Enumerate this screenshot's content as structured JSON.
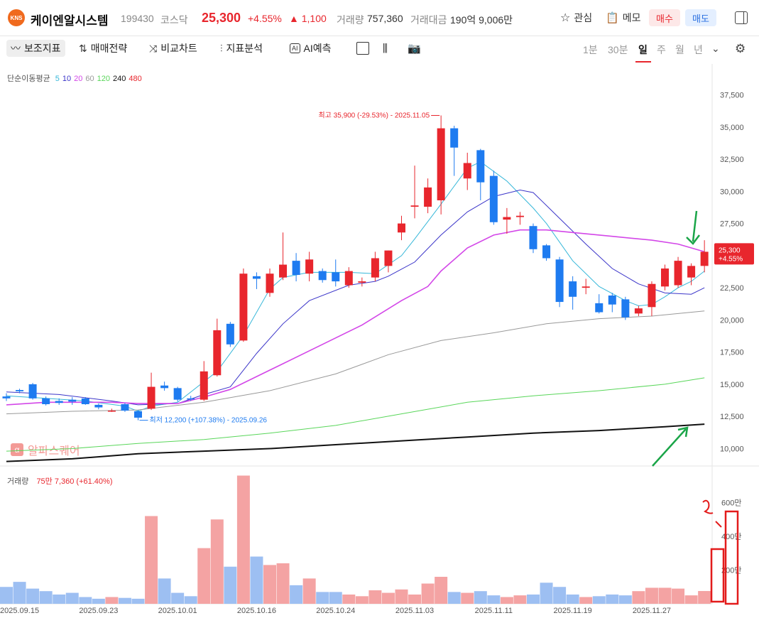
{
  "header": {
    "logo_text": "KNS",
    "name": "케이엔알시스템",
    "code": "199430",
    "market": "코스닥",
    "price": "25,300",
    "change_pct": "+4.55%",
    "change_abs": "▲ 1,100",
    "volume_label": "거래량",
    "volume": "757,360",
    "amount_label": "거래대금",
    "amount": "190억 9,006만",
    "watch_label": "관심",
    "memo_label": "메모",
    "buy_label": "매수",
    "sell_label": "매도"
  },
  "toolbar": {
    "tools": [
      {
        "label": "보조지표",
        "icon": "indicator-icon"
      },
      {
        "label": "매매전략",
        "icon": "strategy-icon"
      },
      {
        "label": "비교차트",
        "icon": "compare-icon"
      },
      {
        "label": "지표분석",
        "icon": "analysis-icon"
      },
      {
        "label": "AI예측",
        "icon": "ai-icon"
      }
    ],
    "periods": [
      "1분",
      "30분",
      "일",
      "주",
      "월",
      "년"
    ],
    "selected_period": "일"
  },
  "watermark": "알파스퀘어",
  "ma_legend": {
    "title": "단순이동평균",
    "items": [
      {
        "label": "5",
        "color": "#36b7d9"
      },
      {
        "label": "10",
        "color": "#3b35c9"
      },
      {
        "label": "20",
        "color": "#d347e8"
      },
      {
        "label": "60",
        "color": "#999999"
      },
      {
        "label": "120",
        "color": "#59d65a"
      },
      {
        "label": "240",
        "color": "#111111"
      },
      {
        "label": "480",
        "color": "#e8262d"
      }
    ]
  },
  "volume_legend": {
    "title": "거래량",
    "value": "75만 7,360 (+61.40%)"
  },
  "chart_data": {
    "type": "candlestick",
    "y_axis": {
      "range": [
        8700,
        38800
      ],
      "ticks": [
        10000,
        12500,
        15000,
        17500,
        20000,
        22500,
        25000,
        27500,
        30000,
        32500,
        35000,
        37500
      ],
      "tick_labels": [
        "10,000",
        "12,500",
        "15,000",
        "17,500",
        "20,000",
        "22,500",
        "25,000",
        "27,500",
        "30,000",
        "32,500",
        "35,000",
        "37,500"
      ]
    },
    "volume_axis": {
      "range": [
        0,
        8000000
      ],
      "ticks": [
        2000000,
        4000000,
        6000000
      ],
      "tick_labels": [
        "200만",
        "400만",
        "600만"
      ]
    },
    "x_labels": [
      {
        "index": 1,
        "label": "2025.09.15"
      },
      {
        "index": 7,
        "label": "2025.09.23"
      },
      {
        "index": 13,
        "label": "2025.10.01"
      },
      {
        "index": 19,
        "label": "2025.10.16"
      },
      {
        "index": 25,
        "label": "2025.10.24"
      },
      {
        "index": 31,
        "label": "2025.11.03"
      },
      {
        "index": 37,
        "label": "2025.11.11"
      },
      {
        "index": 43,
        "label": "2025.11.19"
      },
      {
        "index": 49,
        "label": "2025.11.27"
      }
    ],
    "candles": [
      {
        "o": 14050,
        "h": 14300,
        "l": 13700,
        "c": 13900,
        "v": 1000000
      },
      {
        "o": 14550,
        "h": 14650,
        "l": 14300,
        "c": 14450,
        "v": 1300000
      },
      {
        "o": 15000,
        "h": 15100,
        "l": 13800,
        "c": 13900,
        "v": 900000
      },
      {
        "o": 13900,
        "h": 14050,
        "l": 13350,
        "c": 13450,
        "v": 750000
      },
      {
        "o": 13700,
        "h": 13900,
        "l": 13400,
        "c": 13550,
        "v": 550000
      },
      {
        "o": 13800,
        "h": 14000,
        "l": 13400,
        "c": 13650,
        "v": 650000
      },
      {
        "o": 13900,
        "h": 14000,
        "l": 13400,
        "c": 13450,
        "v": 400000
      },
      {
        "o": 13400,
        "h": 13500,
        "l": 13050,
        "c": 13200,
        "v": 300000
      },
      {
        "o": 12950,
        "h": 13100,
        "l": 12850,
        "c": 12950,
        "v": 400000
      },
      {
        "o": 13450,
        "h": 13550,
        "l": 12850,
        "c": 12950,
        "v": 350000
      },
      {
        "o": 12900,
        "h": 13000,
        "l": 12200,
        "c": 12400,
        "v": 300000
      },
      {
        "o": 13100,
        "h": 15900,
        "l": 13000,
        "c": 14800,
        "v": 5200000
      },
      {
        "o": 14900,
        "h": 15200,
        "l": 14500,
        "c": 14700,
        "v": 1500000
      },
      {
        "o": 14700,
        "h": 14800,
        "l": 13650,
        "c": 13800,
        "v": 650000
      },
      {
        "o": 13900,
        "h": 14100,
        "l": 13700,
        "c": 13850,
        "v": 450000
      },
      {
        "o": 13800,
        "h": 16800,
        "l": 13700,
        "c": 16000,
        "v": 3300000
      },
      {
        "o": 15700,
        "h": 20100,
        "l": 15600,
        "c": 19200,
        "v": 5000000
      },
      {
        "o": 19700,
        "h": 19850,
        "l": 17900,
        "c": 18100,
        "v": 2200000
      },
      {
        "o": 18400,
        "h": 24000,
        "l": 18300,
        "c": 23600,
        "v": 7600000
      },
      {
        "o": 23400,
        "h": 23700,
        "l": 22400,
        "c": 23200,
        "v": 2800000
      },
      {
        "o": 22100,
        "h": 24000,
        "l": 21800,
        "c": 23600,
        "v": 2300000
      },
      {
        "o": 23300,
        "h": 26800,
        "l": 23100,
        "c": 24300,
        "v": 2400000
      },
      {
        "o": 24600,
        "h": 25200,
        "l": 23000,
        "c": 23500,
        "v": 1100000
      },
      {
        "o": 23600,
        "h": 25300,
        "l": 23000,
        "c": 24700,
        "v": 1500000
      },
      {
        "o": 23800,
        "h": 24000,
        "l": 22900,
        "c": 23100,
        "v": 700000
      },
      {
        "o": 23700,
        "h": 24700,
        "l": 22600,
        "c": 23000,
        "v": 700000
      },
      {
        "o": 22700,
        "h": 24100,
        "l": 22500,
        "c": 23800,
        "v": 550000
      },
      {
        "o": 22900,
        "h": 23300,
        "l": 22600,
        "c": 23000,
        "v": 450000
      },
      {
        "o": 23300,
        "h": 25300,
        "l": 23000,
        "c": 24800,
        "v": 800000
      },
      {
        "o": 24200,
        "h": 25400,
        "l": 23700,
        "c": 25400,
        "v": 650000
      },
      {
        "o": 26800,
        "h": 28100,
        "l": 26200,
        "c": 27500,
        "v": 850000
      },
      {
        "o": 28800,
        "h": 32000,
        "l": 27900,
        "c": 28900,
        "v": 550000
      },
      {
        "o": 28800,
        "h": 31000,
        "l": 28300,
        "c": 30300,
        "v": 1200000
      },
      {
        "o": 29300,
        "h": 35900,
        "l": 28200,
        "c": 34900,
        "v": 1600000
      },
      {
        "o": 34900,
        "h": 35100,
        "l": 31200,
        "c": 33400,
        "v": 700000
      },
      {
        "o": 31000,
        "h": 33000,
        "l": 30100,
        "c": 32200,
        "v": 650000
      },
      {
        "o": 33200,
        "h": 33300,
        "l": 29300,
        "c": 30700,
        "v": 750000
      },
      {
        "o": 31200,
        "h": 31600,
        "l": 27400,
        "c": 27600,
        "v": 500000
      },
      {
        "o": 27800,
        "h": 28700,
        "l": 26700,
        "c": 28000,
        "v": 400000
      },
      {
        "o": 28000,
        "h": 28400,
        "l": 27400,
        "c": 28100,
        "v": 500000
      },
      {
        "o": 27300,
        "h": 27500,
        "l": 25200,
        "c": 25500,
        "v": 550000
      },
      {
        "o": 25800,
        "h": 25900,
        "l": 24600,
        "c": 24800,
        "v": 1250000
      },
      {
        "o": 24700,
        "h": 24900,
        "l": 21000,
        "c": 21400,
        "v": 1000000
      },
      {
        "o": 23000,
        "h": 23400,
        "l": 20800,
        "c": 21800,
        "v": 550000
      },
      {
        "o": 22500,
        "h": 23200,
        "l": 22000,
        "c": 22600,
        "v": 400000
      },
      {
        "o": 21300,
        "h": 22000,
        "l": 20500,
        "c": 20600,
        "v": 450000
      },
      {
        "o": 21900,
        "h": 22100,
        "l": 20600,
        "c": 21200,
        "v": 550000
      },
      {
        "o": 21600,
        "h": 21800,
        "l": 20000,
        "c": 20200,
        "v": 500000
      },
      {
        "o": 20500,
        "h": 21100,
        "l": 20300,
        "c": 20900,
        "v": 750000
      },
      {
        "o": 21000,
        "h": 23000,
        "l": 20300,
        "c": 22800,
        "v": 950000
      },
      {
        "o": 22600,
        "h": 24300,
        "l": 22300,
        "c": 24000,
        "v": 950000
      },
      {
        "o": 22700,
        "h": 24900,
        "l": 22500,
        "c": 24600,
        "v": 900000
      },
      {
        "o": 23300,
        "h": 24400,
        "l": 22700,
        "c": 24200,
        "v": 500000
      },
      {
        "o": 24200,
        "h": 26200,
        "l": 23700,
        "c": 25300,
        "v": 757360
      }
    ],
    "moving_averages": [
      {
        "period": 5,
        "color": "#36b7d9",
        "points": [
          [
            0,
            14100
          ],
          [
            3,
            13900
          ],
          [
            6,
            13700
          ],
          [
            9,
            13300
          ],
          [
            10,
            12900
          ],
          [
            11,
            13300
          ],
          [
            13,
            13600
          ],
          [
            16,
            16000
          ],
          [
            18,
            18800
          ],
          [
            20,
            22400
          ],
          [
            21,
            23300
          ],
          [
            23,
            23700
          ],
          [
            26,
            23700
          ],
          [
            28,
            23600
          ],
          [
            30,
            25000
          ],
          [
            31,
            26300
          ],
          [
            33,
            29000
          ],
          [
            35,
            31800
          ],
          [
            36,
            32300
          ],
          [
            38,
            30800
          ],
          [
            40,
            28700
          ],
          [
            41,
            27500
          ],
          [
            43,
            24600
          ],
          [
            45,
            22600
          ],
          [
            47,
            21500
          ],
          [
            48,
            21100
          ],
          [
            49,
            21200
          ],
          [
            50,
            21800
          ],
          [
            51,
            22500
          ],
          [
            52,
            23000
          ],
          [
            53,
            23800
          ]
        ]
      },
      {
        "period": 10,
        "color": "#3b35c9",
        "points": [
          [
            0,
            14400
          ],
          [
            4,
            14200
          ],
          [
            8,
            13700
          ],
          [
            10,
            13400
          ],
          [
            13,
            13500
          ],
          [
            15,
            14200
          ],
          [
            17,
            14800
          ],
          [
            19,
            17400
          ],
          [
            21,
            19700
          ],
          [
            23,
            21500
          ],
          [
            26,
            22700
          ],
          [
            28,
            23000
          ],
          [
            29,
            23400
          ],
          [
            31,
            24500
          ],
          [
            33,
            26600
          ],
          [
            35,
            28400
          ],
          [
            37,
            29600
          ],
          [
            39,
            30100
          ],
          [
            40,
            29900
          ],
          [
            42,
            27900
          ],
          [
            44,
            25900
          ],
          [
            46,
            24000
          ],
          [
            48,
            22800
          ],
          [
            50,
            22100
          ],
          [
            52,
            22000
          ],
          [
            53,
            22500
          ]
        ]
      },
      {
        "period": 20,
        "color": "#d347e8",
        "points": [
          [
            0,
            13400
          ],
          [
            3,
            13600
          ],
          [
            8,
            13600
          ],
          [
            10,
            13500
          ],
          [
            13,
            13500
          ],
          [
            15,
            14000
          ],
          [
            17,
            14600
          ],
          [
            19,
            15600
          ],
          [
            21,
            16600
          ],
          [
            24,
            18100
          ],
          [
            27,
            19600
          ],
          [
            30,
            21500
          ],
          [
            32,
            22600
          ],
          [
            33,
            23800
          ],
          [
            35,
            25600
          ],
          [
            37,
            26600
          ],
          [
            39,
            27000
          ],
          [
            41,
            27000
          ],
          [
            43,
            26800
          ],
          [
            46,
            26500
          ],
          [
            49,
            26200
          ],
          [
            51,
            25900
          ],
          [
            53,
            25300
          ]
        ]
      },
      {
        "period": 60,
        "color": "#999999",
        "points": [
          [
            0,
            12700
          ],
          [
            5,
            12900
          ],
          [
            10,
            13000
          ],
          [
            15,
            13600
          ],
          [
            20,
            14500
          ],
          [
            25,
            15800
          ],
          [
            29,
            17300
          ],
          [
            33,
            18400
          ],
          [
            37,
            19000
          ],
          [
            41,
            19700
          ],
          [
            45,
            20100
          ],
          [
            49,
            20300
          ],
          [
            53,
            20700
          ]
        ]
      },
      {
        "period": 120,
        "color": "#59d65a",
        "points": [
          [
            0,
            9800
          ],
          [
            5,
            10000
          ],
          [
            10,
            10400
          ],
          [
            15,
            10700
          ],
          [
            20,
            11200
          ],
          [
            25,
            11800
          ],
          [
            30,
            12700
          ],
          [
            35,
            13600
          ],
          [
            40,
            14100
          ],
          [
            45,
            14500
          ],
          [
            50,
            15000
          ],
          [
            53,
            15500
          ]
        ]
      },
      {
        "period": 240,
        "color": "#111111",
        "points": [
          [
            0,
            9000
          ],
          [
            5,
            9200
          ],
          [
            10,
            9600
          ],
          [
            15,
            9800
          ],
          [
            20,
            10000
          ],
          [
            25,
            10300
          ],
          [
            30,
            10600
          ],
          [
            35,
            10900
          ],
          [
            40,
            11200
          ],
          [
            45,
            11400
          ],
          [
            50,
            11700
          ],
          [
            53,
            11900
          ]
        ]
      }
    ],
    "annotations": {
      "high": {
        "text": "최고 35,900 (-29.53%) - 2025.11.05",
        "index": 33,
        "value": 35900
      },
      "low": {
        "text": "최저 12,200 (+107.38%) - 2025.09.26",
        "index": 10,
        "value": 12200
      },
      "last_price_tag": {
        "value": 25300,
        "price": "25,300",
        "pct": "+4.55%"
      }
    }
  }
}
